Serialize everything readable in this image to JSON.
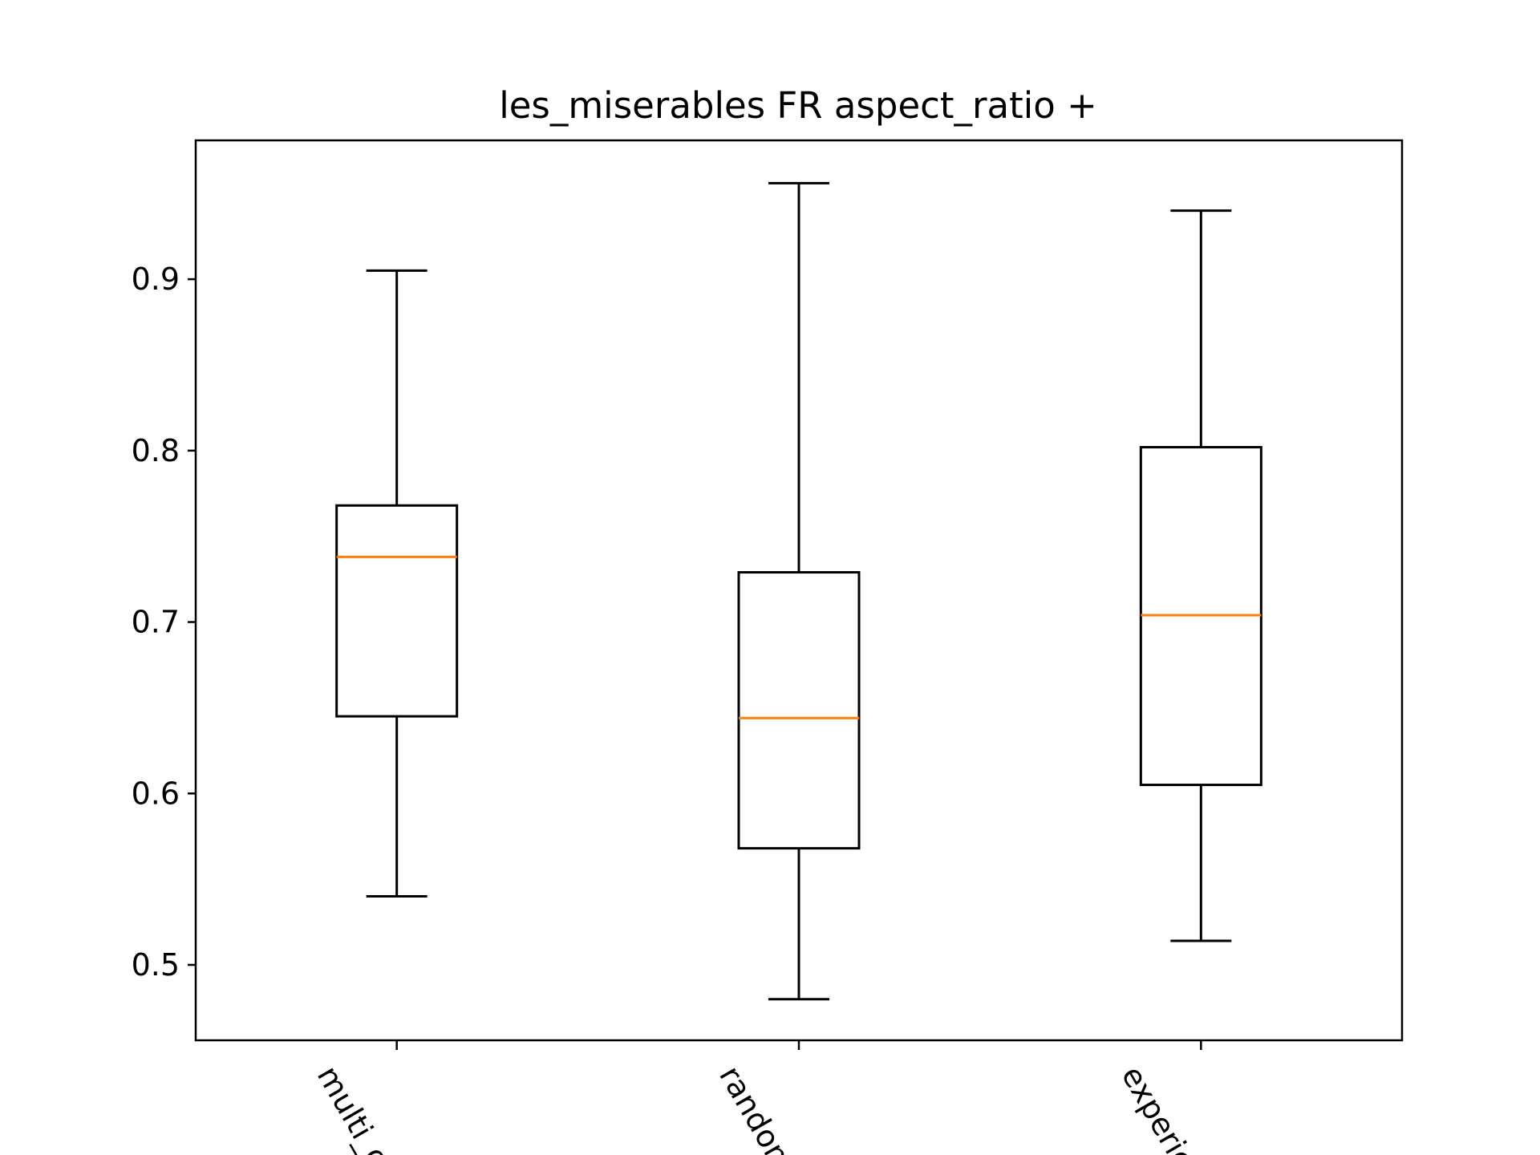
{
  "chart_data": {
    "type": "box",
    "title": "les_miserables FR aspect_ratio +",
    "xlabel": "",
    "ylabel": "",
    "categories": [
      "multi_o",
      "random",
      "experie"
    ],
    "ylim": [
      0.456,
      0.981
    ],
    "yticks": [
      0.5,
      0.6,
      0.7,
      0.8,
      0.9
    ],
    "ytick_labels": [
      "0.5",
      "0.6",
      "0.7",
      "0.8",
      "0.9"
    ],
    "boxes": [
      {
        "whisker_low": 0.54,
        "q1": 0.645,
        "median": 0.738,
        "q3": 0.768,
        "whisker_high": 0.905
      },
      {
        "whisker_low": 0.48,
        "q1": 0.568,
        "median": 0.644,
        "q3": 0.729,
        "whisker_high": 0.956
      },
      {
        "whisker_low": 0.514,
        "q1": 0.605,
        "median": 0.704,
        "q3": 0.802,
        "whisker_high": 0.94
      }
    ],
    "grid": false,
    "legend": "none",
    "colors": {
      "box": "#000000",
      "median": "#ff7f0e"
    }
  }
}
